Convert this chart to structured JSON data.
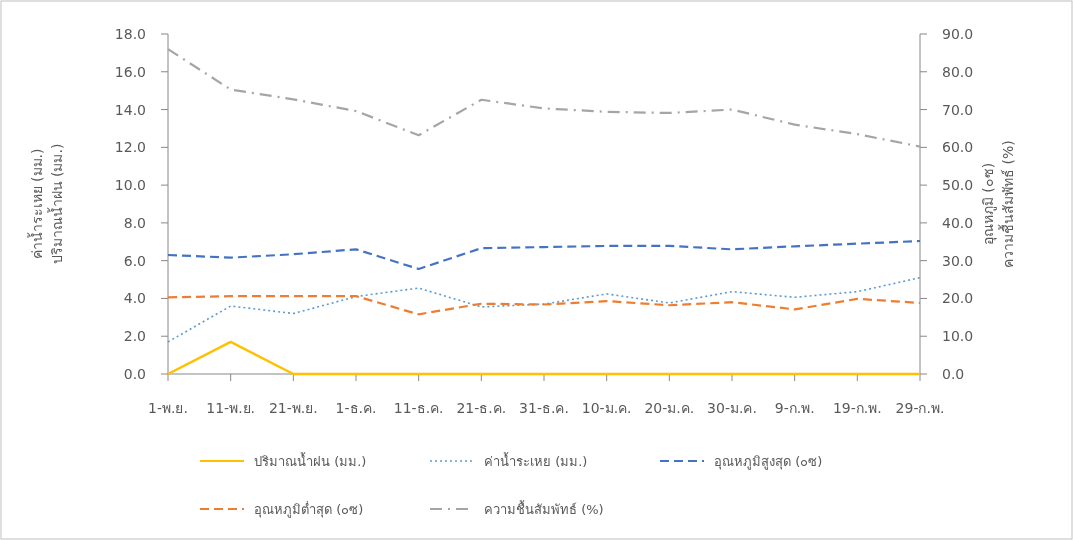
{
  "chart_data": {
    "type": "line",
    "ylabel": "ค่าน้ำระเหย (มม.)\nปริมาณน้ำฝน (มม.)",
    "y2label": "อุณหภูมิ (๐ซ)\nความชื้นสัมพัทธ์ (%)",
    "categories": [
      "1-พ.ย.",
      "11-พ.ย.",
      "21-พ.ย.",
      "1-ธ.ค.",
      "11-ธ.ค.",
      "21-ธ.ค.",
      "31-ธ.ค.",
      "10-ม.ค.",
      "20-ม.ค.",
      "30-ม.ค.",
      "9-ก.พ.",
      "19-ก.พ.",
      "29-ก.พ."
    ],
    "series": [
      {
        "name": "ปริมาณน้ำฝน (มม.)",
        "color": "#ffc000",
        "line_style": "solid",
        "values": [
          0,
          1.7,
          0,
          0,
          0,
          0,
          0,
          0,
          0,
          0,
          0,
          0,
          0
        ]
      },
      {
        "name": "ค่าน้ำระเหย (มม.)",
        "color": "#5b9bd5",
        "line_style": "dotted",
        "values": [
          1.7,
          3.6,
          3.2,
          4.1,
          4.55,
          3.55,
          3.7,
          4.24,
          3.76,
          4.36,
          4.06,
          4.36,
          5.1
        ]
      },
      {
        "name": "อุณหภูมิสูงสุด (๐ซ)",
        "color": "#4472c4",
        "line_style": "dashed",
        "axis": "y2",
        "values": [
          31.5,
          30.8,
          31.7,
          33,
          27.8,
          33.3,
          33.6,
          33.9,
          33.9,
          33.0,
          33.8,
          34.5,
          35.2
        ]
      },
      {
        "name": "อุณหภูมิต่ำสุด (๐ซ)",
        "color": "#ed7d31",
        "line_style": "dashed",
        "axis": "y2",
        "values": [
          20.3,
          20.6,
          20.6,
          20.6,
          15.8,
          18.6,
          18.4,
          19.3,
          18.2,
          19.0,
          17.1,
          19.9,
          18.8
        ]
      },
      {
        "name": "ความชื้นสัมพัทธ์ (%)",
        "color": "#a5a5a5",
        "line_style": "dashdot",
        "axis": "y2",
        "values": [
          86,
          75.3,
          72.7,
          69.6,
          63.2,
          72.6,
          70.3,
          69.4,
          69.1,
          70.0,
          66,
          63.5,
          60.2
        ]
      }
    ],
    "ylim": [
      0,
      18
    ],
    "yticks": [
      {
        "value": 0,
        "label": "0.0"
      },
      {
        "value": 2,
        "label": "2.0"
      },
      {
        "value": 4,
        "label": "4.0"
      },
      {
        "value": 6,
        "label": "6.0"
      },
      {
        "value": 8,
        "label": "8.0"
      },
      {
        "value": 10,
        "label": "10.0"
      },
      {
        "value": 12,
        "label": "12.0"
      },
      {
        "value": 14,
        "label": "14.0"
      },
      {
        "value": 16,
        "label": "16.0"
      },
      {
        "value": 18,
        "label": "18.0"
      }
    ],
    "y2lim": [
      0,
      90
    ],
    "y2ticks": [
      {
        "value": 0,
        "label": "0.0"
      },
      {
        "value": 10,
        "label": "10.0"
      },
      {
        "value": 20,
        "label": "20.0"
      },
      {
        "value": 30,
        "label": "30.0"
      },
      {
        "value": 40,
        "label": "40.0"
      },
      {
        "value": 50,
        "label": "50.0"
      },
      {
        "value": 60,
        "label": "60.0"
      },
      {
        "value": 70,
        "label": "70.0"
      },
      {
        "value": 80,
        "label": "80.0"
      },
      {
        "value": 90,
        "label": "90.0"
      }
    ],
    "grid": false,
    "legend": "bottom",
    "marker": "none"
  }
}
